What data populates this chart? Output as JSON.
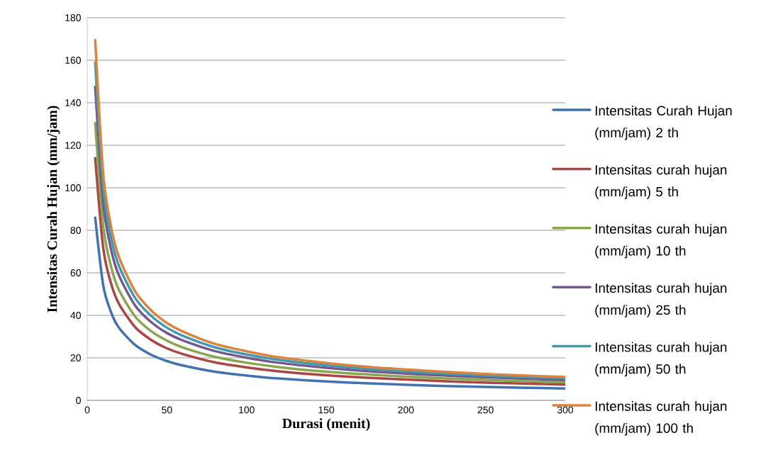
{
  "chart_data": {
    "type": "line",
    "xlabel": "Durasi (menit)",
    "ylabel": "Intensitas Curah Hujan (mm/jam)",
    "x": [
      5,
      10,
      15,
      20,
      30,
      40,
      50,
      60,
      80,
      100,
      120,
      150,
      180,
      210,
      240,
      270,
      300
    ],
    "series": [
      {
        "name": "Intensitas Curah Hujan (mm/jam) 2 th",
        "color": "#4372b0",
        "values": [
          86,
          54.2,
          41.4,
          34.1,
          26.1,
          21.5,
          18.5,
          16.4,
          13.5,
          11.7,
          10.3,
          8.9,
          7.9,
          7.1,
          6.5,
          6.0,
          5.6
        ]
      },
      {
        "name": "Intensitas curah hujan (mm/jam) 5 th",
        "color": "#aa4643",
        "values": [
          114,
          71.8,
          54.8,
          45.3,
          34.5,
          28.5,
          24.5,
          21.8,
          17.9,
          15.5,
          13.7,
          11.8,
          10.5,
          9.5,
          8.6,
          8.0,
          7.4
        ]
      },
      {
        "name": "Intensitas curah hujan (mm/jam) 10 th",
        "color": "#89a54e",
        "values": [
          130.5,
          82.2,
          62.8,
          51.8,
          39.5,
          32.6,
          28.1,
          24.9,
          20.5,
          17.7,
          15.7,
          13.5,
          12.0,
          10.8,
          9.9,
          9.1,
          8.5
        ]
      },
      {
        "name": "Intensitas curah hujan (mm/jam) 25 th",
        "color": "#71588f",
        "values": [
          147.5,
          92.9,
          70.9,
          58.6,
          44.7,
          36.9,
          31.7,
          28.2,
          23.2,
          20.1,
          17.7,
          15.3,
          13.5,
          12.2,
          11.2,
          10.3,
          9.6
        ]
      },
      {
        "name": "Intensitas curah hujan (mm/jam) 50 th",
        "color": "#4198af",
        "values": [
          159,
          100.2,
          76.5,
          63.1,
          48.2,
          39.8,
          34.2,
          30.4,
          25.0,
          21.6,
          19.1,
          16.5,
          14.6,
          13.2,
          12.0,
          11.1,
          10.4
        ]
      },
      {
        "name": "Intensitas curah hujan (mm/jam) 100 th",
        "color": "#db843d",
        "values": [
          169.5,
          106.8,
          81.5,
          67.3,
          51.4,
          42.4,
          36.4,
          32.4,
          26.6,
          23.1,
          20.3,
          17.6,
          15.5,
          14.1,
          12.8,
          11.8,
          11.0
        ]
      }
    ],
    "xlim": [
      0,
      300
    ],
    "ylim": [
      0,
      180
    ],
    "xticks": [
      0,
      50,
      100,
      150,
      200,
      250,
      300
    ],
    "yticks": [
      0,
      20,
      40,
      60,
      80,
      100,
      120,
      140,
      160,
      180
    ],
    "grid": "y",
    "legend": "right",
    "marker": "none",
    "line_style": "solid"
  }
}
